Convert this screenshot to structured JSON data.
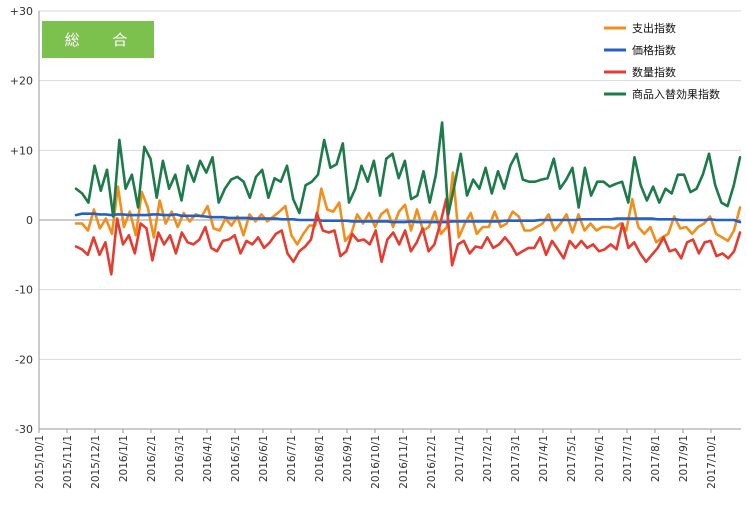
{
  "badge": "総 合",
  "chart_data": {
    "type": "line",
    "yticks": [
      "+30",
      "+20",
      "+10",
      "0",
      "-10",
      "-20",
      "-30"
    ],
    "ylim": [
      -30,
      30
    ],
    "xticks": [
      "2015/10/1",
      "2015/11/1",
      "2015/12/1",
      "2016/1/1",
      "2016/2/1",
      "2016/3/1",
      "2016/4/1",
      "2016/5/1",
      "2016/6/1",
      "2016/7/1",
      "2016/8/1",
      "2016/9/1",
      "2016/10/1",
      "2016/11/1",
      "2016/12/1",
      "2017/1/1",
      "2017/2/1",
      "2017/3/1",
      "2017/4/1",
      "2017/5/1",
      "2017/6/1",
      "2017/7/1",
      "2017/8/1",
      "2017/9/1",
      "2017/10/1"
    ],
    "x_start": "2015/11/1",
    "x_step": "weekly",
    "legend_position": "top-right",
    "grid": "horizontal",
    "series": [
      {
        "name": "支出指数",
        "color": "#f28e1c",
        "values": [
          -0.5,
          -0.5,
          -1.5,
          1.5,
          -1.2,
          0.2,
          -2.0,
          4.8,
          -1.0,
          1.2,
          -2.2,
          4.0,
          1.8,
          -2.5,
          2.8,
          -0.5,
          1.2,
          -1.0,
          1.0,
          -0.2,
          0.8,
          0.5,
          2.0,
          -1.2,
          -1.5,
          0.2,
          -0.8,
          0.5,
          -2.2,
          0.8,
          -0.2,
          0.8,
          -0.2,
          0.5,
          1.2,
          2.0,
          -2.2,
          -3.5,
          -2.0,
          -0.8,
          -0.8,
          4.5,
          1.5,
          1.2,
          2.5,
          -3.0,
          -2.0,
          0.8,
          -0.5,
          1.0,
          -1.0,
          0.8,
          1.5,
          -1.0,
          1.2,
          2.2,
          -1.5,
          1.5,
          -1.5,
          -1.0,
          1.2,
          -2.0,
          -1.0,
          6.8,
          -2.5,
          -0.5,
          1.0,
          -2.0,
          -1.0,
          -1.0,
          1.2,
          -1.0,
          -0.5,
          1.2,
          0.5,
          -1.5,
          -1.5,
          -1.0,
          -0.5,
          0.8,
          -1.5,
          -0.5,
          0.8,
          -1.8,
          0.8,
          -1.5,
          -0.5,
          -1.5,
          -1.0,
          -1.0,
          -1.2,
          -0.5,
          -1.5,
          3.0,
          -1.0,
          -2.0,
          -1.0,
          -3.2,
          -2.5,
          -2.0,
          0.5,
          -1.2,
          -1.0,
          -2.0,
          -1.0,
          -0.5,
          0.5,
          -2.0,
          -2.5,
          -3.0,
          -1.5,
          1.8
        ]
      },
      {
        "name": "価格指数",
        "color": "#2660c4",
        "values": [
          0.7,
          0.9,
          0.9,
          0.9,
          0.8,
          0.8,
          0.7,
          0.8,
          0.8,
          0.7,
          0.7,
          0.7,
          0.7,
          0.8,
          0.8,
          0.7,
          0.7,
          0.8,
          0.6,
          0.6,
          0.6,
          0.6,
          0.5,
          0.4,
          0.4,
          0.4,
          0.3,
          0.3,
          0.3,
          0.3,
          0.2,
          0.2,
          0.2,
          0.2,
          0.2,
          0.1,
          0.1,
          0.1,
          0.0,
          0.0,
          0.0,
          0.0,
          -0.1,
          -0.1,
          -0.1,
          -0.1,
          -0.1,
          -0.2,
          -0.2,
          -0.2,
          -0.2,
          -0.2,
          -0.2,
          -0.2,
          -0.3,
          -0.3,
          -0.3,
          -0.2,
          -0.3,
          -0.3,
          -0.3,
          -0.3,
          -0.3,
          -0.3,
          -0.2,
          -0.2,
          -0.2,
          -0.2,
          -0.2,
          -0.2,
          -0.2,
          -0.2,
          -0.2,
          -0.1,
          -0.1,
          -0.1,
          -0.1,
          -0.1,
          -0.1,
          0.0,
          0.0,
          0.0,
          0.0,
          0.0,
          0.0,
          0.0,
          0.1,
          0.1,
          0.1,
          0.1,
          0.1,
          0.1,
          0.2,
          0.2,
          0.2,
          0.2,
          0.2,
          0.2,
          0.2,
          0.1,
          0.1,
          0.1,
          0.1,
          0.0,
          0.0,
          0.0,
          0.0,
          0.0,
          0.1,
          0.0,
          0.0,
          0.0,
          0.0,
          -0.3
        ]
      },
      {
        "name": "数量指数",
        "color": "#e43c30",
        "values": [
          -3.8,
          -4.2,
          -5.0,
          -2.5,
          -5.0,
          -3.2,
          -7.8,
          0.2,
          -3.5,
          -2.2,
          -4.8,
          -0.5,
          -1.2,
          -5.8,
          -1.8,
          -3.5,
          -2.2,
          -4.8,
          -1.8,
          -3.2,
          -3.5,
          -2.8,
          -1.0,
          -4.0,
          -4.5,
          -3.0,
          -2.8,
          -2.2,
          -4.8,
          -3.0,
          -3.5,
          -2.5,
          -4.0,
          -3.2,
          -2.0,
          -1.5,
          -4.8,
          -6.0,
          -4.5,
          -3.8,
          -2.8,
          1.0,
          -1.5,
          -1.8,
          -1.5,
          -5.2,
          -4.5,
          -2.0,
          -3.0,
          -2.8,
          -3.5,
          -1.5,
          -6.0,
          -2.8,
          -1.8,
          -3.5,
          -1.5,
          -4.5,
          -3.2,
          -1.2,
          -4.5,
          -3.5,
          -0.5,
          3.0,
          -6.5,
          -3.5,
          -3.0,
          -4.8,
          -3.8,
          -4.0,
          -2.5,
          -4.0,
          -3.5,
          -2.5,
          -3.5,
          -5.0,
          -4.5,
          -4.0,
          -4.0,
          -2.5,
          -5.0,
          -3.0,
          -4.2,
          -5.5,
          -3.0,
          -4.0,
          -3.0,
          -4.0,
          -3.5,
          -4.5,
          -4.2,
          -3.5,
          -4.2,
          -0.5,
          -4.0,
          -3.2,
          -4.8,
          -6.0,
          -5.0,
          -4.0,
          -2.5,
          -4.5,
          -4.2,
          -5.5,
          -3.2,
          -2.8,
          -4.8,
          -3.2,
          -3.0,
          -5.2,
          -4.8,
          -5.5,
          -4.5,
          -1.8
        ]
      },
      {
        "name": "商品入替効果指数",
        "color": "#1d7a4a",
        "values": [
          4.5,
          3.8,
          2.5,
          7.8,
          4.2,
          7.2,
          0.5,
          11.5,
          4.5,
          6.5,
          1.8,
          10.5,
          8.8,
          3.2,
          8.5,
          4.5,
          6.5,
          2.8,
          7.8,
          5.5,
          8.5,
          6.8,
          9.0,
          2.5,
          4.5,
          5.8,
          6.2,
          5.5,
          3.2,
          6.2,
          7.2,
          3.2,
          6.0,
          5.5,
          7.8,
          3.0,
          1.0,
          5.0,
          5.5,
          6.5,
          11.5,
          7.5,
          8.0,
          11.0,
          2.5,
          4.5,
          7.8,
          5.5,
          8.5,
          3.5,
          8.8,
          9.5,
          6.0,
          8.5,
          3.0,
          3.5,
          7.0,
          2.5,
          6.5,
          14.0,
          0.8,
          5.0,
          9.5,
          3.5,
          5.8,
          4.5,
          7.5,
          3.8,
          7.0,
          4.5,
          7.8,
          9.5,
          5.8,
          5.5,
          5.5,
          5.8,
          6.0,
          8.8,
          4.5,
          5.8,
          7.5,
          1.8,
          7.5,
          3.5,
          5.5,
          5.5,
          4.8,
          5.2,
          5.5,
          2.5,
          9.0,
          5.0,
          2.8,
          4.8,
          2.5,
          4.5,
          3.8,
          6.5,
          6.5,
          4.0,
          4.5,
          6.5,
          9.5,
          5.0,
          2.5,
          2.0,
          5.0,
          9.0
        ]
      }
    ]
  }
}
